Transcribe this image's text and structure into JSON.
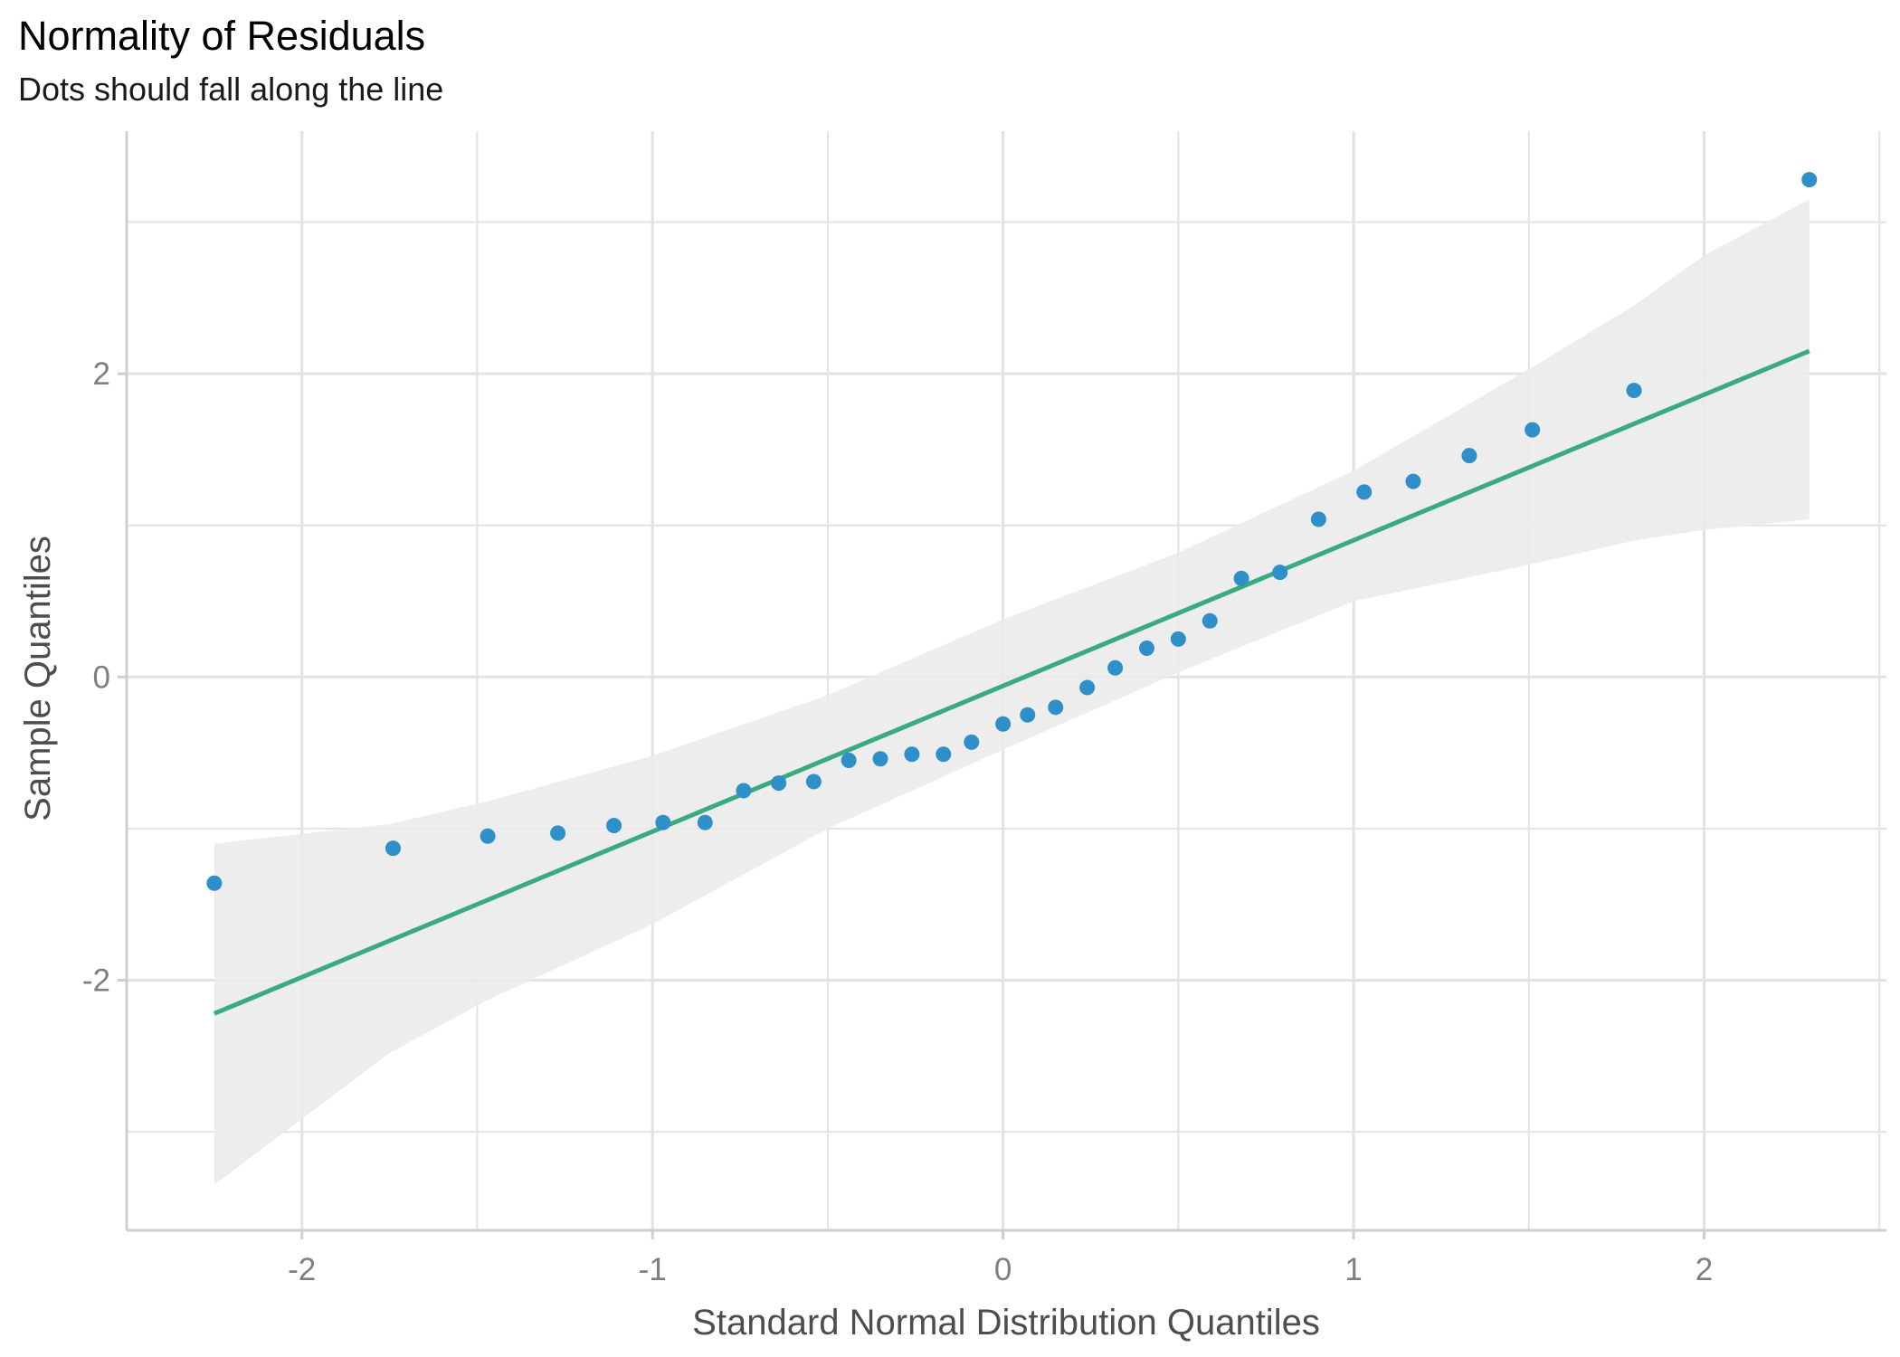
{
  "chart_data": {
    "type": "scatter",
    "title": "Normality of Residuals",
    "subtitle": "Dots should fall along the line",
    "xlabel": "Standard Normal Distribution Quantiles",
    "ylabel": "Sample Quantiles",
    "xlim": [
      -2.5,
      2.52
    ],
    "ylim": [
      -3.65,
      3.6
    ],
    "x_ticks": [
      -2,
      -1,
      0,
      1,
      2
    ],
    "x_tick_labels": [
      "-2",
      "-1",
      "0",
      "1",
      "2"
    ],
    "y_ticks": [
      -2,
      0,
      2
    ],
    "y_tick_labels": [
      "-2",
      "0",
      "2"
    ],
    "grid": true,
    "colors": {
      "points": "#2e8fc9",
      "line": "#3aaa7f",
      "band": "#ebebeb",
      "grid": "#e2e2e2"
    },
    "series": [
      {
        "values": [
          [
            -2.25,
            -1.36
          ],
          [
            -1.74,
            -1.13
          ],
          [
            -1.47,
            -1.05
          ],
          [
            -1.27,
            -1.03
          ],
          [
            -1.11,
            -0.98
          ],
          [
            -0.97,
            -0.96
          ],
          [
            -0.85,
            -0.96
          ],
          [
            -0.74,
            -0.75
          ],
          [
            -0.64,
            -0.7
          ],
          [
            -0.54,
            -0.69
          ],
          [
            -0.44,
            -0.55
          ],
          [
            -0.35,
            -0.54
          ],
          [
            -0.26,
            -0.51
          ],
          [
            -0.17,
            -0.51
          ],
          [
            -0.09,
            -0.43
          ],
          [
            0.0,
            -0.31
          ],
          [
            0.07,
            -0.25
          ],
          [
            0.15,
            -0.2
          ],
          [
            0.24,
            -0.07
          ],
          [
            0.32,
            0.06
          ],
          [
            0.41,
            0.19
          ],
          [
            0.5,
            0.25
          ],
          [
            0.59,
            0.37
          ],
          [
            0.68,
            0.65
          ],
          [
            0.79,
            0.69
          ],
          [
            0.9,
            1.04
          ],
          [
            1.03,
            1.22
          ],
          [
            1.17,
            1.29
          ],
          [
            1.33,
            1.46
          ],
          [
            1.51,
            1.63
          ],
          [
            1.8,
            1.89
          ],
          [
            2.3,
            3.28
          ]
        ]
      }
    ],
    "reference_line": {
      "x": [
        -2.25,
        2.3
      ],
      "y": [
        -2.22,
        2.15
      ]
    },
    "confidence_band": {
      "x": [
        -2.25,
        -1.75,
        -1.47,
        -1.0,
        -0.5,
        0.0,
        0.5,
        1.0,
        1.5,
        1.8,
        2.0,
        2.3
      ],
      "upper": [
        -1.1,
        -0.97,
        -0.82,
        -0.52,
        -0.12,
        0.38,
        0.82,
        1.36,
        2.03,
        2.45,
        2.78,
        3.15
      ],
      "lower": [
        -3.35,
        -2.48,
        -2.13,
        -1.63,
        -1.0,
        -0.48,
        0.03,
        0.5,
        0.74,
        0.9,
        0.97,
        1.04
      ]
    }
  }
}
